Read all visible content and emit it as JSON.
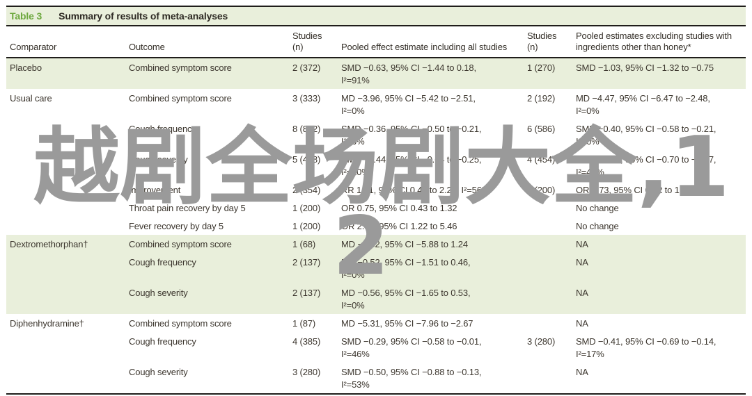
{
  "table": {
    "label": "Table 3",
    "title": "Summary of results of meta-analyses",
    "columns": [
      "Comparator",
      "Outcome",
      "Studies (n)",
      "Pooled effect estimate including all studies",
      "Studies (n)",
      "Pooled estimates excluding studies with ingredients other than honey*"
    ],
    "groups": [
      {
        "comparator": "Placebo",
        "shaded": true,
        "rows": [
          {
            "outcome": "Combined symptom score",
            "studies1": "2 (372)",
            "pooled1": [
              "SMD −0.63, 95% CI −1.44 to 0.18,",
              "I²=91%"
            ],
            "studies2": "1 (270)",
            "pooled2": [
              "SMD −1.03, 95% CI −1.32 to −0.75"
            ]
          }
        ]
      },
      {
        "comparator": "Usual care",
        "shaded": false,
        "rows": [
          {
            "outcome": "Combined symptom score",
            "studies1": "3 (333)",
            "pooled1": [
              "MD −3.96, 95% CI −5.42 to −2.51,",
              "I²=0%"
            ],
            "studies2": "2 (192)",
            "pooled2": [
              "MD −4.47, 95% CI −6.47 to −2.48,",
              "I²=0%"
            ]
          },
          {
            "outcome": "Cough frequency",
            "studies1": "8 (832)",
            "pooled1": [
              "SMD −0.36, 95% CI −0.50 to −0.21,",
              "I²=0%"
            ],
            "studies2": "6 (586)",
            "pooled2": [
              "SMD −0.40, 95% CI −0.58 to −0.21,",
              "I²=0%"
            ]
          },
          {
            "outcome": "Cough severity",
            "studies1": "5 (458)",
            "pooled1": [
              "SMD −0.44, 95% CI −0.64 to −0.25,",
              "I²=20%"
            ],
            "studies2": "4 (454)",
            "pooled2": [
              "SMD −0.44, 95% CI −0.70 to −0.17,",
              "I²=40%"
            ]
          },
          {
            "outcome": "Improvement",
            "studies1": "2 (354)",
            "pooled1": [
              "RR 1.01, 95% CI 0.45 to 2.27, I²=56%"
            ],
            "studies2": "1 (200)",
            "pooled2": [
              "OR 0.73, 95% CI 0.42 to 1.27"
            ]
          },
          {
            "outcome": "Throat pain recovery by day 5",
            "studies1": "1 (200)",
            "pooled1": [
              "OR 0.75, 95% CI 0.43 to 1.32"
            ],
            "studies2": "",
            "pooled2": [
              "No change"
            ]
          },
          {
            "outcome": "Fever recovery by day 5",
            "studies1": "1 (200)",
            "pooled1": [
              "OR 2.58, 95% CI 1.22 to 5.46"
            ],
            "studies2": "",
            "pooled2": [
              "No change"
            ]
          }
        ]
      },
      {
        "comparator": "Dextromethorphan†",
        "shaded": true,
        "rows": [
          {
            "outcome": "Combined symptom score",
            "studies1": "1 (68)",
            "pooled1": [
              "MD −2.32, 95% CI −5.88 to 1.24"
            ],
            "studies2": "",
            "pooled2": [
              "NA"
            ]
          },
          {
            "outcome": "Cough frequency",
            "studies1": "2 (137)",
            "pooled1": [
              "MD −0.52, 95% CI −1.51 to 0.46,",
              "I²=0%"
            ],
            "studies2": "",
            "pooled2": [
              "NA"
            ]
          },
          {
            "outcome": "Cough severity",
            "studies1": "2 (137)",
            "pooled1": [
              "MD −0.56, 95% CI −1.65 to 0.53,",
              "I²=0%"
            ],
            "studies2": "",
            "pooled2": [
              "NA"
            ]
          }
        ]
      },
      {
        "comparator": "Diphenhydramine†",
        "shaded": false,
        "rows": [
          {
            "outcome": "Combined symptom score",
            "studies1": "1 (87)",
            "pooled1": [
              "MD −5.31, 95% CI −7.96 to −2.67"
            ],
            "studies2": "",
            "pooled2": [
              "NA"
            ]
          },
          {
            "outcome": "Cough frequency",
            "studies1": "4 (385)",
            "pooled1": [
              "SMD −0.29, 95% CI −0.58 to −0.01,",
              "I²=46%"
            ],
            "studies2": "3 (280)",
            "pooled2": [
              "SMD −0.41, 95% CI −0.69 to −0.14,",
              "I²=17%"
            ]
          },
          {
            "outcome": "Cough severity",
            "studies1": "3 (280)",
            "pooled1": [
              "SMD −0.50, 95% CI −0.88 to −0.13,",
              "I²=53%"
            ],
            "studies2": "",
            "pooled2": [
              "NA"
            ]
          }
        ]
      }
    ]
  },
  "watermark": {
    "line1": "越剧全场剧大全,1",
    "line2": "2",
    "color": "#9a9a9a"
  },
  "colors": {
    "accent_green": "#6da83e",
    "row_shade_green": "#e9efdb",
    "rule_dark": "#1f1d1a",
    "body_text": "#3c362e",
    "watermark_gray": "#9a9a9a"
  }
}
